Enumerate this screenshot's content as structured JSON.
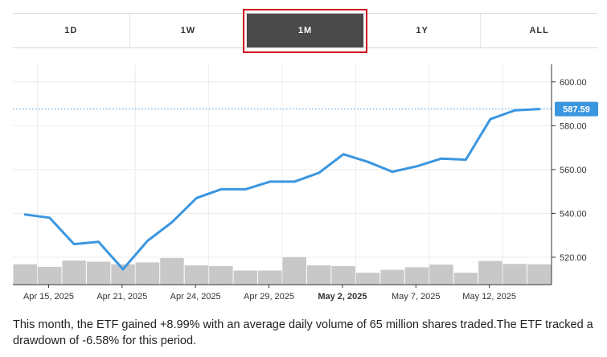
{
  "tabs": [
    {
      "label": "1D",
      "active": false
    },
    {
      "label": "1W",
      "active": false
    },
    {
      "label": "1M",
      "active": true
    },
    {
      "label": "1Y",
      "active": false
    },
    {
      "label": "ALL",
      "active": false
    }
  ],
  "colors": {
    "line": "#3b96e0",
    "volume": "#c8c8c8",
    "active_tab": "#4a4a4a",
    "highlight": "#d0021b",
    "price_badge": "#3b96e0"
  },
  "chart_data": {
    "type": "line",
    "x_tick_labels": [
      "Apr 15, 2025",
      "Apr 21, 2025",
      "Apr 24, 2025",
      "Apr 29, 2025",
      "May 2, 2025",
      "May 7, 2025",
      "May 12, 2025"
    ],
    "bold_tick_label": "May 2, 2025",
    "y_tick_labels": [
      "600.00",
      "580.00",
      "560.00",
      "540.00",
      "520.00"
    ],
    "y_ticks": [
      600,
      580,
      560,
      540,
      520
    ],
    "ylim": [
      507.5,
      608
    ],
    "current_price": 587.59,
    "current_price_label": "587.59",
    "price": [
      539.5,
      538.0,
      526.0,
      527.0,
      514.5,
      527.5,
      536.0,
      547.0,
      551.0,
      551.0,
      554.5,
      554.5,
      558.5,
      567.0,
      563.5,
      559.0,
      561.5,
      565.0,
      564.5,
      583.0,
      587.0,
      587.59
    ],
    "volume_relative": [
      0.55,
      0.48,
      0.65,
      0.62,
      0.55,
      0.6,
      0.72,
      0.52,
      0.5,
      0.38,
      0.38,
      0.74,
      0.52,
      0.5,
      0.32,
      0.4,
      0.47,
      0.54,
      0.32,
      0.64,
      0.56,
      0.55
    ]
  },
  "summary": "This month, the ETF gained +8.99% with an average daily volume of 65 million shares traded.The ETF tracked a drawdown of -6.58% for this period."
}
